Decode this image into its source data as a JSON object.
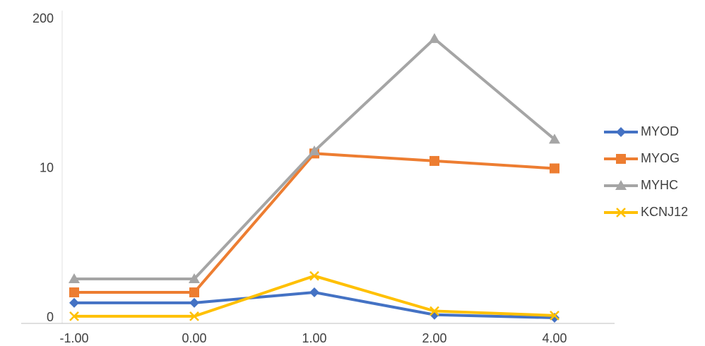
{
  "chart_data": {
    "type": "line",
    "categories": [
      "-1.00",
      "0.00",
      "1.00",
      "2.00",
      "4.00"
    ],
    "ylim": [
      0,
      200
    ],
    "yticks": [
      0,
      10,
      200
    ],
    "series": [
      {
        "name": "MYOD",
        "color": "#4472c4",
        "marker": "diamond",
        "values": [
          1.0,
          1.0,
          1.7,
          0.2,
          0.0
        ]
      },
      {
        "name": "MYOG",
        "color": "#ed7d31",
        "marker": "square",
        "values": [
          1.7,
          1.7,
          29,
          19.5,
          10
        ]
      },
      {
        "name": "MYHC",
        "color": "#a5a5a5",
        "marker": "triangle",
        "values": [
          2.6,
          2.6,
          32,
          175,
          47
        ]
      },
      {
        "name": "KCNJ12",
        "color": "#ffc000",
        "marker": "x",
        "values": [
          0.1,
          0.1,
          2.8,
          0.45,
          0.15
        ]
      }
    ]
  }
}
